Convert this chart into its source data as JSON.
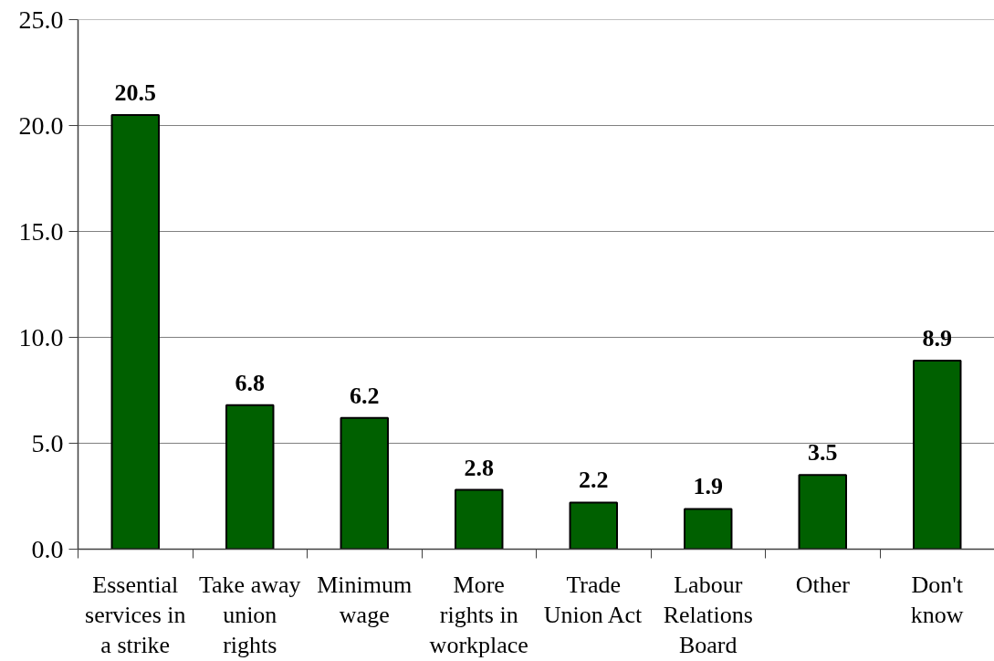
{
  "chart_data": {
    "type": "bar",
    "categories": [
      "Essential services in a strike",
      "Take away union rights",
      "Minimum wage",
      "More rights in workplace",
      "Trade Union Act",
      "Labour Relations Board",
      "Other",
      "Don't know"
    ],
    "values": [
      20.5,
      6.8,
      6.2,
      2.8,
      2.2,
      1.9,
      3.5,
      8.9
    ],
    "color": "#006000",
    "ylim": [
      0,
      25
    ],
    "yticks": [
      {
        "value": 0,
        "label": "0.0"
      },
      {
        "value": 5,
        "label": "5.0"
      },
      {
        "value": 10,
        "label": "10.0"
      },
      {
        "value": 15,
        "label": "15.0"
      },
      {
        "value": 20,
        "label": "20.0"
      },
      {
        "value": 25,
        "label": "25.0"
      }
    ],
    "grid": "y",
    "data_labels": true
  }
}
